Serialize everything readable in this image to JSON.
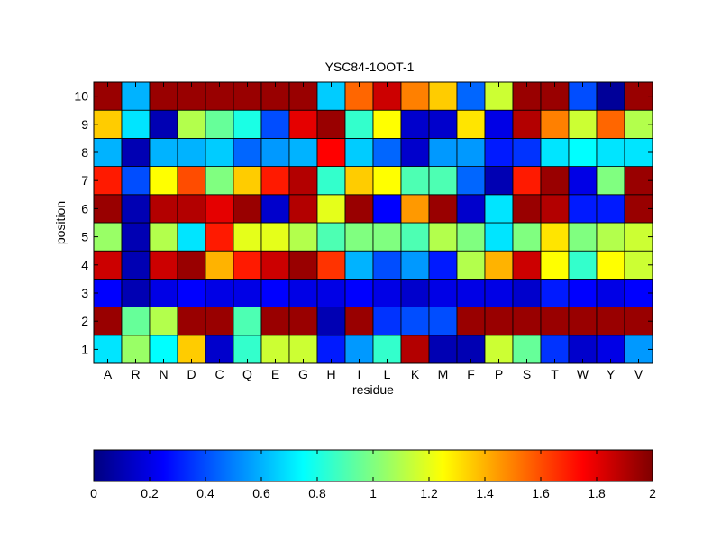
{
  "chart_data": {
    "type": "heatmap",
    "title": "YSC84-1OOT-1",
    "xlabel": "residue",
    "ylabel": "position",
    "x_categories": [
      "A",
      "R",
      "N",
      "D",
      "C",
      "Q",
      "E",
      "G",
      "H",
      "I",
      "L",
      "K",
      "M",
      "F",
      "P",
      "S",
      "T",
      "W",
      "Y",
      "V"
    ],
    "y_categories": [
      "1",
      "2",
      "3",
      "4",
      "5",
      "6",
      "7",
      "8",
      "9",
      "10"
    ],
    "colormap": "jet",
    "clim": [
      0,
      2
    ],
    "colorbar": {
      "orientation": "horizontal",
      "placement": "bottom",
      "ticks": [
        "0",
        "0.2",
        "0.4",
        "0.6",
        "0.8",
        "1",
        "1.2",
        "1.4",
        "1.6",
        "1.8",
        "2"
      ]
    },
    "values": [
      [
        0.7,
        1.05,
        0.75,
        1.35,
        0.15,
        0.85,
        1.15,
        1.15,
        0.3,
        0.55,
        0.85,
        1.9,
        0.1,
        0.1,
        1.15,
        0.95,
        0.35,
        0.15,
        0.2,
        0.55
      ],
      [
        1.95,
        0.95,
        1.1,
        1.95,
        1.95,
        0.9,
        1.95,
        1.95,
        0.1,
        1.95,
        0.35,
        0.4,
        0.4,
        1.95,
        1.95,
        1.95,
        1.95,
        1.95,
        1.95,
        1.95
      ],
      [
        0.25,
        0.1,
        0.2,
        0.25,
        0.2,
        0.2,
        0.25,
        0.2,
        0.2,
        0.25,
        0.2,
        0.15,
        0.2,
        0.2,
        0.2,
        0.15,
        0.3,
        0.25,
        0.2,
        0.25
      ],
      [
        1.85,
        0.1,
        1.85,
        1.95,
        1.4,
        1.7,
        1.85,
        1.95,
        1.65,
        0.6,
        0.4,
        0.55,
        0.3,
        1.1,
        1.4,
        1.85,
        1.25,
        0.85,
        1.25,
        1.15
      ],
      [
        1.05,
        0.1,
        1.1,
        0.7,
        1.7,
        1.2,
        1.2,
        1.1,
        0.9,
        1.0,
        1.0,
        0.9,
        1.1,
        1.0,
        0.7,
        1.0,
        1.3,
        1.0,
        1.1,
        1.15
      ],
      [
        1.95,
        0.1,
        1.9,
        1.9,
        1.8,
        1.95,
        0.15,
        1.9,
        1.2,
        1.95,
        0.25,
        1.45,
        1.95,
        0.15,
        0.7,
        1.95,
        1.9,
        0.3,
        0.3,
        1.95
      ],
      [
        1.7,
        0.4,
        1.25,
        1.6,
        1.0,
        1.35,
        1.7,
        1.9,
        0.85,
        1.35,
        1.25,
        0.9,
        0.9,
        0.45,
        0.1,
        1.7,
        1.95,
        0.2,
        1.0,
        1.95
      ],
      [
        0.6,
        0.1,
        0.6,
        0.6,
        0.65,
        0.45,
        0.55,
        0.6,
        1.75,
        0.65,
        0.45,
        0.15,
        0.55,
        0.55,
        0.3,
        0.35,
        0.7,
        0.75,
        0.7,
        0.7
      ],
      [
        1.35,
        0.7,
        0.1,
        1.1,
        0.95,
        0.8,
        0.4,
        1.8,
        1.95,
        0.85,
        1.25,
        0.15,
        0.15,
        1.3,
        0.2,
        1.9,
        1.5,
        1.15,
        1.55,
        1.1
      ],
      [
        1.95,
        0.6,
        1.95,
        1.95,
        1.95,
        1.95,
        1.95,
        1.95,
        0.65,
        1.55,
        1.85,
        1.5,
        1.35,
        0.45,
        1.15,
        1.95,
        1.95,
        0.4,
        0.05,
        1.95
      ]
    ]
  }
}
